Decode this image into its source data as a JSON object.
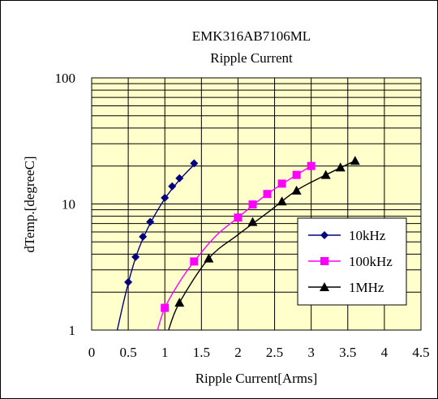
{
  "chart_data": {
    "type": "line",
    "title": "EMK316AB7106ML",
    "subtitle": "Ripple Current",
    "xlabel": "Ripple Current[Arms]",
    "ylabel": "dTemp.[degreeC]",
    "xlim": [
      0,
      4.5
    ],
    "ylim": [
      1,
      100
    ],
    "yscale": "log",
    "x_ticks": [
      "0",
      "0.5",
      "1",
      "1.5",
      "2",
      "2.5",
      "3",
      "3.5",
      "4",
      "4.5"
    ],
    "y_ticks": [
      "1",
      "10",
      "100"
    ],
    "grid": true,
    "legend_position": "right-lower",
    "plot_background": "#ffffcc",
    "series": [
      {
        "name": "10kHz",
        "color": "#000080",
        "marker": "diamond",
        "x": [
          0.5,
          0.6,
          0.7,
          0.8,
          1.0,
          1.1,
          1.2,
          1.4
        ],
        "y": [
          2.4,
          3.8,
          5.5,
          7.2,
          11.2,
          13.8,
          16.0,
          21.0
        ],
        "fit_x": [
          0.35,
          0.45,
          0.55,
          0.65,
          0.8,
          1.0,
          1.2,
          1.42
        ],
        "fit_y": [
          1.0,
          1.8,
          3.0,
          4.5,
          7.0,
          11.0,
          15.5,
          21.0
        ]
      },
      {
        "name": "100kHz",
        "color": "#ff00ff",
        "marker": "square",
        "x": [
          1.0,
          1.4,
          2.0,
          2.2,
          2.4,
          2.6,
          2.8,
          3.0
        ],
        "y": [
          1.5,
          3.5,
          7.8,
          9.9,
          12.0,
          14.5,
          17.0,
          20.0
        ],
        "fit_x": [
          0.9,
          1.0,
          1.2,
          1.4,
          1.7,
          2.0,
          2.4,
          2.8,
          3.0
        ],
        "fit_y": [
          1.0,
          1.5,
          2.4,
          3.5,
          5.6,
          7.8,
          12.0,
          17.0,
          20.0
        ]
      },
      {
        "name": "1MHz",
        "color": "#000000",
        "marker": "triangle",
        "x": [
          1.2,
          1.6,
          2.2,
          2.6,
          2.8,
          3.2,
          3.4,
          3.6
        ],
        "y": [
          1.65,
          3.7,
          7.2,
          10.5,
          12.8,
          17.0,
          19.5,
          22.0
        ],
        "fit_x": [
          1.05,
          1.2,
          1.6,
          2.0,
          2.4,
          2.8,
          3.2,
          3.6
        ],
        "fit_y": [
          1.0,
          1.65,
          3.7,
          5.7,
          8.5,
          12.8,
          17.0,
          22.0
        ]
      }
    ]
  }
}
